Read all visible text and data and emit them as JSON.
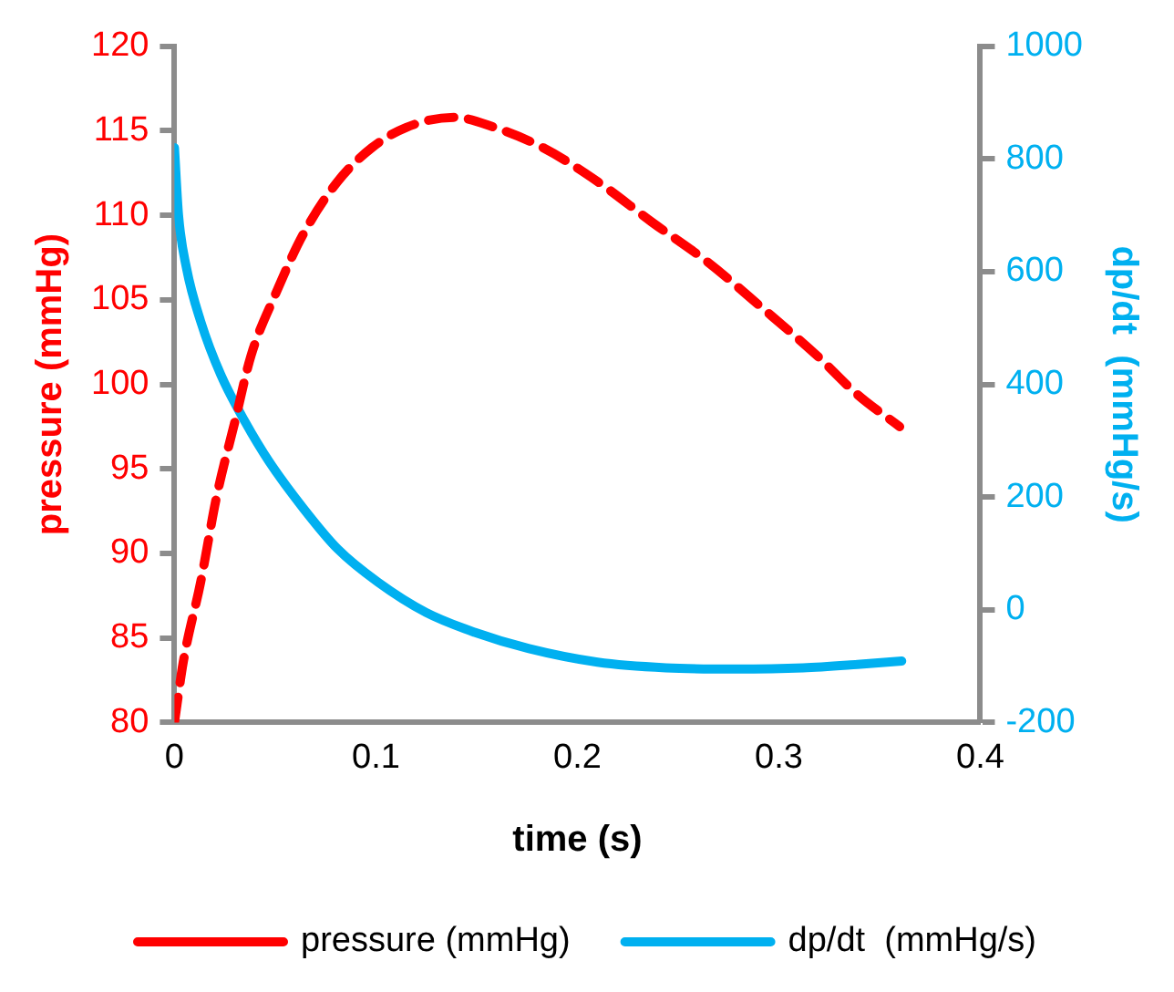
{
  "chart_data": {
    "type": "line",
    "xlabel": "time (s)",
    "ylabel": "pressure (mmHg)",
    "y2label": "dp/dt  (mmHg/s)",
    "xlim": [
      0,
      0.4
    ],
    "xticks": [
      0,
      0.1,
      0.2,
      0.3,
      0.4
    ],
    "ylim": [
      80,
      120
    ],
    "yticks": [
      80,
      85,
      90,
      95,
      100,
      105,
      110,
      115,
      120
    ],
    "y2lim": [
      -200,
      1000
    ],
    "y2ticks": [
      -200,
      0,
      200,
      400,
      600,
      800,
      1000
    ],
    "grid": false,
    "legend": "bottom",
    "marker": "none",
    "series": [
      {
        "name": "pressure (mmHg)",
        "color": "#ff0000",
        "line_style": "dashed",
        "x": [
          0,
          0.0044,
          0.013,
          0.021,
          0.03,
          0.038,
          0.05,
          0.064,
          0.081,
          0.098,
          0.115,
          0.139,
          0.159,
          0.183,
          0.21,
          0.237,
          0.264,
          0.292,
          0.319,
          0.339,
          0.36
        ],
        "values": [
          80,
          83.6,
          88.3,
          93.4,
          97.8,
          101.7,
          105.3,
          108.9,
          112.0,
          114.0,
          115.2,
          115.8,
          115.2,
          114.0,
          112.0,
          109.6,
          107.3,
          104.5,
          101.7,
          99.4,
          97.5
        ]
      },
      {
        "name": "dp/dt  (mmHg/s)",
        "color": "#00b0f0",
        "line_style": "solid",
        "axis": "y2",
        "x": [
          0,
          0.002,
          0.006,
          0.013,
          0.023,
          0.035,
          0.047,
          0.064,
          0.081,
          0.101,
          0.125,
          0.149,
          0.176,
          0.21,
          0.244,
          0.278,
          0.312,
          0.339,
          0.361
        ],
        "values": [
          820,
          701,
          606,
          512,
          417,
          334,
          263,
          180,
          108,
          49,
          -5,
          -40,
          -69,
          -93,
          -103,
          -105,
          -103,
          -97,
          -91
        ]
      }
    ]
  }
}
